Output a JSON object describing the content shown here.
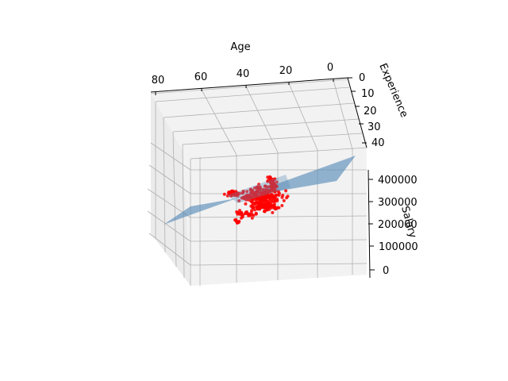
{
  "chart_data": {
    "type": "scatter",
    "subtype": "3d-scatter-with-regression-plane",
    "title": "",
    "axes": {
      "x": {
        "label": "Age",
        "ticks": [
          "80",
          "60",
          "40",
          "20",
          "0"
        ]
      },
      "y": {
        "label": "Experience",
        "ticks": [
          "0",
          "10",
          "20",
          "30",
          "40"
        ]
      },
      "z": {
        "label": "Salary",
        "ticks": [
          "400000",
          "300000",
          "200000",
          "100000",
          "0"
        ]
      }
    },
    "grid": true,
    "pane_color": "#f2f2f2",
    "series": [
      {
        "kind": "scatter",
        "color": "#ff0000",
        "approx_region": {
          "age": [
            25,
            60
          ],
          "experience": [
            0,
            35
          ],
          "salary": [
            150000,
            380000
          ]
        },
        "approx_point_count": 400
      },
      {
        "kind": "surface",
        "description_of_fit": "linear regression plane",
        "color": "#5b8db8",
        "opacity": 0.65
      }
    ]
  }
}
